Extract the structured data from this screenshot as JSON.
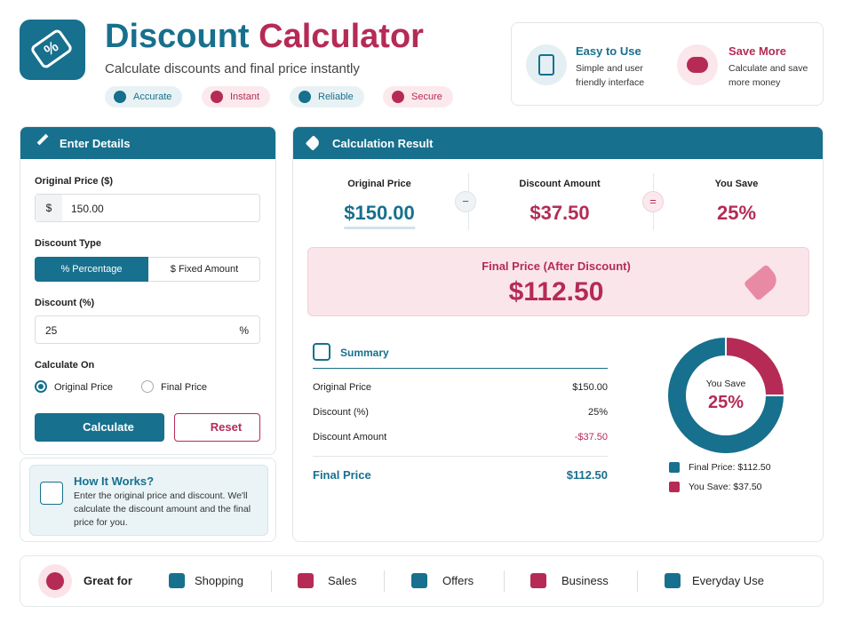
{
  "header": {
    "logo_symbol": "%",
    "title_part1": "Discount",
    "title_part2": "Calculator",
    "subtitle": "Calculate discounts and final price instantly",
    "badges": [
      "Accurate",
      "Instant",
      "Reliable",
      "Secure"
    ]
  },
  "features": [
    {
      "title": "Easy to Use",
      "text": "Simple and user friendly interface"
    },
    {
      "title": "Save More",
      "text": "Calculate and save more money"
    }
  ],
  "form": {
    "heading": "Enter Details",
    "price_label": "Original Price ($)",
    "currency": "$",
    "price_value": "150.00",
    "type_label": "Discount Type",
    "type_options": [
      "% Percentage",
      "$ Fixed Amount"
    ],
    "discount_label": "Discount (%)",
    "discount_value": "25",
    "discount_unit": "%",
    "calc_on_label": "Calculate On",
    "calc_on_options": [
      "Original Price",
      "Final Price"
    ],
    "calculate": "Calculate",
    "reset": "Reset"
  },
  "how": {
    "title": "How It Works?",
    "text": "Enter the original price and discount. We'll calculate the discount amount and the final price for you."
  },
  "result": {
    "heading": "Calculation Result",
    "stats": [
      {
        "label": "Original Price",
        "value": "$150.00"
      },
      {
        "label": "Discount Amount",
        "value": "$37.50"
      },
      {
        "label": "You Save",
        "value": "25%"
      }
    ],
    "operators": [
      "−",
      "="
    ],
    "final_label": "Final Price (After Discount)",
    "final_value": "$112.50",
    "summary": {
      "title": "Summary",
      "rows": [
        [
          "Original Price",
          "$150.00"
        ],
        [
          "Discount (%)",
          "25%"
        ],
        [
          "Discount Amount",
          "-$37.50"
        ]
      ],
      "total": [
        "Final Price",
        "$112.50"
      ]
    },
    "donut": {
      "center_label": "You Save",
      "center_value": "25%",
      "segments": [
        {
          "name": "Final Price: $112.50",
          "value": 112.5,
          "color": "#17708d"
        },
        {
          "name": "You Save: $37.50",
          "value": 37.5,
          "color": "#b52b55"
        }
      ]
    }
  },
  "footer": {
    "lead": "Great for",
    "items": [
      "Shopping",
      "Sales",
      "Offers",
      "Business",
      "Everyday Use"
    ]
  }
}
